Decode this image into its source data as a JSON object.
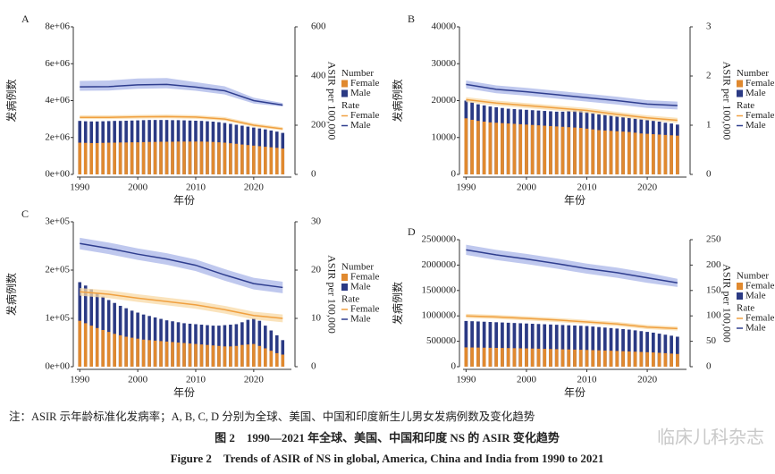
{
  "chart_data": [
    {
      "type": "combo",
      "panel": "A",
      "ylabel": "发病例数",
      "y2label": "ASIR per 100,000",
      "xlabel": "年份",
      "number_label": "Number",
      "rate_label": "Rate",
      "xlim": [
        1989.5,
        2026.5
      ],
      "xticks": [
        1990,
        2000,
        2010,
        2020
      ],
      "ylim": [
        0,
        8000000
      ],
      "yticks": [
        {
          "value": 0,
          "label": "0e+00"
        },
        {
          "value": 2000000,
          "label": "2e+06"
        },
        {
          "value": 4000000,
          "label": "4e+06"
        },
        {
          "value": 6000000,
          "label": "6e+06"
        },
        {
          "value": 8000000,
          "label": "8e+06"
        }
      ],
      "y2lim": [
        0,
        600
      ],
      "y2ticks": [
        0,
        200,
        400,
        600
      ],
      "x": [
        1990,
        1991,
        1992,
        1993,
        1994,
        1995,
        1996,
        1997,
        1998,
        1999,
        2000,
        2001,
        2002,
        2003,
        2004,
        2005,
        2006,
        2007,
        2008,
        2009,
        2010,
        2011,
        2012,
        2013,
        2014,
        2015,
        2016,
        2017,
        2018,
        2019,
        2020,
        2021,
        2022,
        2023,
        2024,
        2025
      ],
      "series": [
        {
          "name": "Male",
          "type": "bar",
          "color": "#2b3a84",
          "values": [
            2900000,
            2880000,
            2870000,
            2870000,
            2880000,
            2890000,
            2900000,
            2900000,
            2910000,
            2920000,
            2930000,
            2940000,
            2950000,
            2950000,
            2950000,
            2950000,
            2940000,
            2940000,
            2930000,
            2920000,
            2910000,
            2900000,
            2880000,
            2860000,
            2830000,
            2790000,
            2740000,
            2690000,
            2640000,
            2590000,
            2540000,
            2490000,
            2440000,
            2380000,
            2320000,
            2250000
          ]
        },
        {
          "name": "Female",
          "type": "bar",
          "color": "#e0892f",
          "values": [
            1720000,
            1710000,
            1700000,
            1700000,
            1710000,
            1720000,
            1720000,
            1730000,
            1730000,
            1740000,
            1740000,
            1750000,
            1760000,
            1760000,
            1770000,
            1770000,
            1770000,
            1780000,
            1780000,
            1780000,
            1780000,
            1780000,
            1770000,
            1760000,
            1740000,
            1720000,
            1690000,
            1660000,
            1620000,
            1590000,
            1560000,
            1530000,
            1500000,
            1470000,
            1440000,
            1400000
          ]
        },
        {
          "name": "Female",
          "type": "line",
          "axis": "y2",
          "color": "#f0a040",
          "band_color": "#f8d9a6",
          "x": [
            1990,
            1995,
            2000,
            2005,
            2010,
            2015,
            2020,
            2025
          ],
          "values": [
            232,
            232,
            234,
            235,
            233,
            225,
            200,
            185
          ],
          "lower": [
            225,
            225,
            227,
            228,
            226,
            218,
            193,
            179
          ],
          "upper": [
            240,
            240,
            242,
            243,
            241,
            233,
            208,
            192
          ]
        },
        {
          "name": "Male",
          "type": "line",
          "axis": "y2",
          "color": "#2f3e8f",
          "band_color": "#a9b6e8",
          "x": [
            1990,
            1995,
            2000,
            2005,
            2010,
            2015,
            2020,
            2025
          ],
          "values": [
            356,
            357,
            364,
            366,
            355,
            340,
            300,
            282
          ],
          "lower": [
            340,
            341,
            348,
            350,
            340,
            325,
            288,
            276
          ],
          "upper": [
            380,
            382,
            390,
            392,
            375,
            358,
            312,
            290
          ]
        }
      ]
    },
    {
      "type": "combo",
      "panel": "B",
      "ylabel": "发病例数",
      "y2label": "ASIR per 100,000",
      "xlabel": "年份",
      "number_label": "Number",
      "rate_label": "Rate",
      "xlim": [
        1989.5,
        2026.5
      ],
      "xticks": [
        1990,
        2000,
        2010,
        2020
      ],
      "ylim": [
        0,
        40000
      ],
      "yticks": [
        0,
        10000,
        20000,
        30000,
        40000
      ],
      "y2lim": [
        0,
        3
      ],
      "y2ticks": [
        0,
        1,
        2,
        3
      ],
      "x": [
        1990,
        1991,
        1992,
        1993,
        1994,
        1995,
        1996,
        1997,
        1998,
        1999,
        2000,
        2001,
        2002,
        2003,
        2004,
        2005,
        2006,
        2007,
        2008,
        2009,
        2010,
        2011,
        2012,
        2013,
        2014,
        2015,
        2016,
        2017,
        2018,
        2019,
        2020,
        2021,
        2022,
        2023,
        2024,
        2025
      ],
      "series": [
        {
          "name": "Male",
          "type": "bar",
          "color": "#2b3a84",
          "values": [
            20000,
            19500,
            19000,
            18700,
            18400,
            18200,
            18000,
            17800,
            17700,
            17600,
            17500,
            17400,
            17300,
            17200,
            17100,
            17000,
            17000,
            17100,
            17300,
            17200,
            16900,
            16600,
            16300,
            16100,
            15900,
            15700,
            15500,
            15300,
            15100,
            14900,
            14700,
            14500,
            14300,
            14000,
            13800,
            13500
          ]
        },
        {
          "name": "Female",
          "type": "bar",
          "color": "#e0892f",
          "values": [
            15200,
            14800,
            14500,
            14300,
            14100,
            14000,
            13900,
            13800,
            13700,
            13600,
            13500,
            13400,
            13300,
            13200,
            13100,
            13000,
            12900,
            12800,
            12700,
            12600,
            12400,
            12200,
            12000,
            11900,
            11800,
            11700,
            11600,
            11500,
            11300,
            11100,
            11000,
            10900,
            10800,
            10700,
            10600,
            10500
          ]
        },
        {
          "name": "Female",
          "type": "line",
          "axis": "y2",
          "color": "#f0a040",
          "band_color": "#f8d9a6",
          "x": [
            1990,
            1995,
            2000,
            2005,
            2010,
            2015,
            2020,
            2025
          ],
          "values": [
            1.52,
            1.45,
            1.4,
            1.35,
            1.3,
            1.22,
            1.15,
            1.1
          ],
          "lower": [
            1.47,
            1.4,
            1.35,
            1.3,
            1.25,
            1.17,
            1.1,
            1.05
          ],
          "upper": [
            1.57,
            1.5,
            1.45,
            1.4,
            1.35,
            1.27,
            1.2,
            1.15
          ]
        },
        {
          "name": "Male",
          "type": "line",
          "axis": "y2",
          "color": "#2f3e8f",
          "band_color": "#a9b6e8",
          "x": [
            1990,
            1995,
            2000,
            2005,
            2010,
            2015,
            2020,
            2025
          ],
          "values": [
            1.83,
            1.73,
            1.68,
            1.62,
            1.56,
            1.5,
            1.43,
            1.4
          ],
          "lower": [
            1.75,
            1.65,
            1.6,
            1.54,
            1.48,
            1.42,
            1.35,
            1.32
          ],
          "upper": [
            1.91,
            1.81,
            1.76,
            1.7,
            1.64,
            1.58,
            1.51,
            1.48
          ]
        }
      ]
    },
    {
      "type": "combo",
      "panel": "C",
      "ylabel": "发病例数",
      "y2label": "ASIR per 100,000",
      "xlabel": "年份",
      "number_label": "Number",
      "rate_label": "Rate",
      "xlim": [
        1989.5,
        2026.5
      ],
      "xticks": [
        1990,
        2000,
        2010,
        2020
      ],
      "ylim": [
        0,
        300000
      ],
      "yticks": [
        {
          "value": 0,
          "label": "0e+00"
        },
        {
          "value": 100000,
          "label": "1e+05"
        },
        {
          "value": 200000,
          "label": "2e+05"
        },
        {
          "value": 300000,
          "label": "3e+05"
        }
      ],
      "y2lim": [
        0,
        30
      ],
      "y2ticks": [
        0,
        10,
        20,
        30
      ],
      "x": [
        1990,
        1991,
        1992,
        1993,
        1994,
        1995,
        1996,
        1997,
        1998,
        1999,
        2000,
        2001,
        2002,
        2003,
        2004,
        2005,
        2006,
        2007,
        2008,
        2009,
        2010,
        2011,
        2012,
        2013,
        2014,
        2015,
        2016,
        2017,
        2018,
        2019,
        2020,
        2021,
        2022,
        2023,
        2024,
        2025
      ],
      "series": [
        {
          "name": "Male",
          "type": "bar",
          "color": "#2b3a84",
          "values": [
            175000,
            168000,
            160000,
            152000,
            145000,
            138000,
            132000,
            126000,
            121000,
            116000,
            112000,
            108000,
            105000,
            102000,
            99000,
            96000,
            94000,
            92000,
            90000,
            89000,
            88000,
            87000,
            86000,
            85000,
            85000,
            86000,
            87000,
            88000,
            92000,
            97000,
            100000,
            95000,
            85000,
            75000,
            65000,
            55000
          ]
        },
        {
          "name": "Female",
          "type": "bar",
          "color": "#e0892f",
          "values": [
            95000,
            90000,
            85000,
            80000,
            76000,
            72000,
            68000,
            65000,
            62000,
            60000,
            58000,
            56000,
            55000,
            54000,
            53000,
            52000,
            51000,
            50000,
            49000,
            48000,
            47000,
            46000,
            45000,
            44000,
            43000,
            42000,
            42000,
            43000,
            45000,
            46000,
            47000,
            43000,
            38000,
            33000,
            28000,
            25000
          ]
        },
        {
          "name": "Female",
          "type": "line",
          "axis": "y2",
          "color": "#f0a040",
          "band_color": "#f8d9a6",
          "x": [
            1990,
            1995,
            2000,
            2005,
            2010,
            2015,
            2020,
            2025
          ],
          "values": [
            15.5,
            15,
            14.2,
            13.5,
            12.8,
            11.8,
            10.6,
            10
          ],
          "lower": [
            14.7,
            14.2,
            13.4,
            12.7,
            12,
            11,
            9.8,
            9.2
          ],
          "upper": [
            16.3,
            15.8,
            15,
            14.3,
            13.6,
            12.6,
            11.4,
            10.8
          ]
        },
        {
          "name": "Male",
          "type": "line",
          "axis": "y2",
          "color": "#2f3e8f",
          "band_color": "#a9b6e8",
          "x": [
            1990,
            1995,
            2000,
            2005,
            2010,
            2015,
            2020,
            2025
          ],
          "values": [
            25.5,
            24.5,
            23.3,
            22.3,
            21,
            19,
            17.2,
            16.4
          ],
          "lower": [
            24.3,
            23.3,
            22.1,
            21.1,
            19.8,
            17.8,
            16,
            15.2
          ],
          "upper": [
            26.7,
            25.7,
            24.5,
            23.5,
            22.2,
            20.2,
            18.4,
            17.6
          ]
        }
      ]
    },
    {
      "type": "combo",
      "panel": "D",
      "ylabel": "发病例数",
      "y2label": "ASIR per 100,000",
      "xlabel": "年份",
      "number_label": "Number",
      "rate_label": "Rate",
      "xlim": [
        1989.5,
        2026.5
      ],
      "xticks": [
        1990,
        2000,
        2010,
        2020
      ],
      "ylim": [
        0,
        2500000
      ],
      "yticks": [
        0,
        500000,
        1000000,
        1500000,
        2000000,
        2500000
      ],
      "y2lim": [
        0,
        250
      ],
      "y2ticks": [
        0,
        50,
        100,
        150,
        200,
        250
      ],
      "x": [
        1990,
        1991,
        1992,
        1993,
        1994,
        1995,
        1996,
        1997,
        1998,
        1999,
        2000,
        2001,
        2002,
        2003,
        2004,
        2005,
        2006,
        2007,
        2008,
        2009,
        2010,
        2011,
        2012,
        2013,
        2014,
        2015,
        2016,
        2017,
        2018,
        2019,
        2020,
        2021,
        2022,
        2023,
        2024,
        2025
      ],
      "series": [
        {
          "name": "Male",
          "type": "bar",
          "color": "#2b3a84",
          "values": [
            900000,
            895000,
            890000,
            885000,
            880000,
            875000,
            870000,
            865000,
            860000,
            855000,
            850000,
            845000,
            840000,
            835000,
            830000,
            825000,
            820000,
            815000,
            810000,
            805000,
            800000,
            790000,
            780000,
            770000,
            760000,
            750000,
            740000,
            730000,
            715000,
            700000,
            685000,
            670000,
            650000,
            630000,
            610000,
            590000
          ]
        },
        {
          "name": "Female",
          "type": "bar",
          "color": "#e0892f",
          "values": [
            380000,
            378000,
            376000,
            374000,
            372000,
            370000,
            368000,
            366000,
            364000,
            362000,
            360000,
            357000,
            354000,
            351000,
            348000,
            345000,
            342000,
            339000,
            336000,
            333000,
            330000,
            326000,
            322000,
            318000,
            314000,
            310000,
            305000,
            300000,
            295000,
            290000,
            285000,
            280000,
            273000,
            266000,
            258000,
            250000
          ]
        },
        {
          "name": "Female",
          "type": "line",
          "axis": "y2",
          "color": "#f0a040",
          "band_color": "#f8d9a6",
          "x": [
            1990,
            1995,
            2000,
            2005,
            2010,
            2015,
            2020,
            2025
          ],
          "values": [
            100,
            98,
            95,
            92,
            88,
            84,
            78,
            75
          ],
          "lower": [
            96,
            94,
            91,
            88,
            84,
            80,
            74,
            71
          ],
          "upper": [
            104,
            102,
            99,
            96,
            92,
            88,
            82,
            79
          ]
        },
        {
          "name": "Male",
          "type": "line",
          "axis": "y2",
          "color": "#2f3e8f",
          "band_color": "#a9b6e8",
          "x": [
            1990,
            1995,
            2000,
            2005,
            2010,
            2015,
            2020,
            2025
          ],
          "values": [
            230,
            220,
            212,
            203,
            193,
            185,
            175,
            165
          ],
          "lower": [
            220,
            210,
            202,
            193,
            183,
            175,
            165,
            157
          ],
          "upper": [
            240,
            230,
            222,
            213,
            203,
            195,
            185,
            173
          ]
        }
      ]
    }
  ],
  "caption": {
    "note": "注：ASIR 示年龄标准化发病率；A, B, C, D 分别为全球、美国、中国和印度新生儿男女发病例数及变化趋势",
    "title_cn": "图 2　1990—2021 年全球、美国、中国和印度 NS 的 ASIR 变化趋势",
    "title_en": "Figure 2　Trends of ASIR of NS in global, America, China and India from 1990 to 2021",
    "watermark": "临床儿科杂志"
  }
}
